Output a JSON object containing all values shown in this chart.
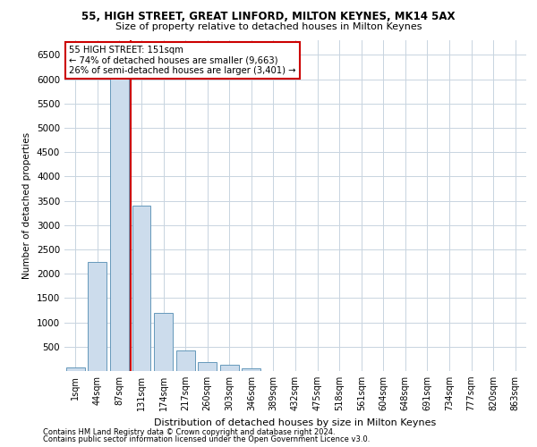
{
  "title_line1": "55, HIGH STREET, GREAT LINFORD, MILTON KEYNES, MK14 5AX",
  "title_line2": "Size of property relative to detached houses in Milton Keynes",
  "xlabel": "Distribution of detached houses by size in Milton Keynes",
  "ylabel": "Number of detached properties",
  "footnote1": "Contains HM Land Registry data © Crown copyright and database right 2024.",
  "footnote2": "Contains public sector information licensed under the Open Government Licence v3.0.",
  "annotation_title": "55 HIGH STREET: 151sqm",
  "annotation_line2": "← 74% of detached houses are smaller (9,663)",
  "annotation_line3": "26% of semi-detached houses are larger (3,401) →",
  "bar_color": "#ccdcec",
  "bar_edge_color": "#6699bb",
  "vline_color": "#cc0000",
  "categories": [
    "1sqm",
    "44sqm",
    "87sqm",
    "131sqm",
    "174sqm",
    "217sqm",
    "260sqm",
    "303sqm",
    "346sqm",
    "389sqm",
    "432sqm",
    "475sqm",
    "518sqm",
    "561sqm",
    "604sqm",
    "648sqm",
    "691sqm",
    "734sqm",
    "777sqm",
    "820sqm",
    "863sqm"
  ],
  "values": [
    70,
    2250,
    6050,
    3400,
    1200,
    430,
    175,
    130,
    55,
    0,
    0,
    0,
    0,
    0,
    0,
    0,
    0,
    0,
    0,
    0,
    0
  ],
  "vline_pos": 3.0,
  "ylim": [
    0,
    6800
  ],
  "yticks": [
    0,
    500,
    1000,
    1500,
    2000,
    2500,
    3000,
    3500,
    4000,
    4500,
    5000,
    5500,
    6000,
    6500
  ],
  "background_color": "#ffffff",
  "grid_color": "#c8d4e0",
  "annotation_box_color": "#ffffff",
  "annotation_box_edge_color": "#cc0000"
}
